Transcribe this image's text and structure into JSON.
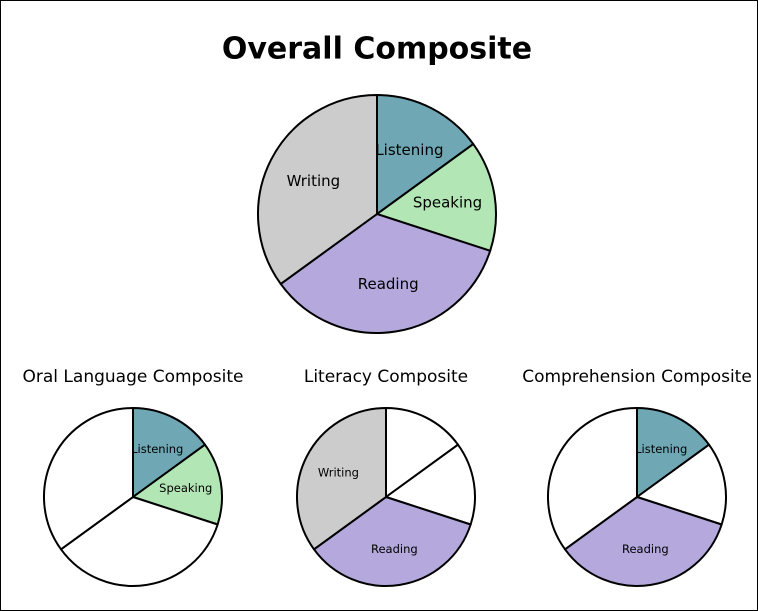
{
  "chart_data": [
    {
      "type": "pie",
      "title": "Overall Composite",
      "categories": [
        "Listening",
        "Speaking",
        "Reading",
        "Writing"
      ],
      "values": [
        15,
        15,
        35,
        35
      ],
      "colors": [
        "#6fa7b5",
        "#b3e6b5",
        "#b4a8dc",
        "#cccccc"
      ]
    },
    {
      "type": "pie",
      "title": "Oral Language Composite",
      "categories": [
        "Listening",
        "Speaking",
        null,
        null
      ],
      "values": [
        15,
        15,
        35,
        35
      ],
      "colors": [
        "#6fa7b5",
        "#b3e6b5",
        "#ffffff",
        "#ffffff"
      ]
    },
    {
      "type": "pie",
      "title": "Literacy Composite",
      "categories": [
        null,
        null,
        "Reading",
        "Writing"
      ],
      "values": [
        15,
        15,
        35,
        35
      ],
      "colors": [
        "#ffffff",
        "#ffffff",
        "#b4a8dc",
        "#cccccc"
      ]
    },
    {
      "type": "pie",
      "title": "Comprehension Composite",
      "categories": [
        "Listening",
        null,
        "Reading",
        null
      ],
      "values": [
        15,
        15,
        35,
        35
      ],
      "colors": [
        "#6fa7b5",
        "#ffffff",
        "#b4a8dc",
        "#ffffff"
      ]
    }
  ]
}
